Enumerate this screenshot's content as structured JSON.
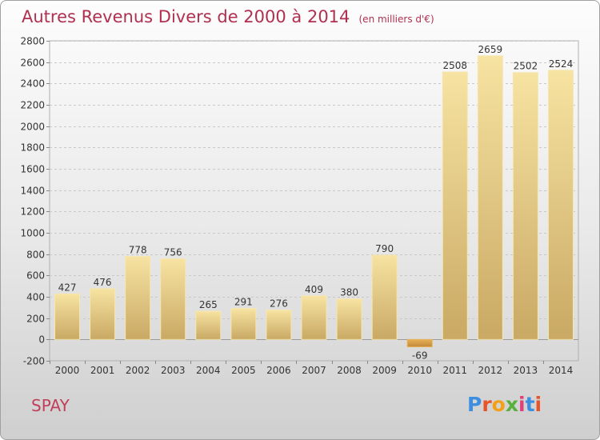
{
  "header": {
    "title": "Autres Revenus Divers de 2000 à 2014",
    "subtitle": "(en milliers d'€)"
  },
  "footer": {
    "place": "SPAY",
    "brand": "Proxiti",
    "brand_colors": [
      "#3c8ee0",
      "#e8542a",
      "#f2a018",
      "#5ab03c",
      "#e0407a",
      "#3c8ee0",
      "#e8542a"
    ]
  },
  "chart_data": {
    "type": "bar",
    "title": "Autres Revenus Divers de 2000 à 2014",
    "subtitle": "(en milliers d'€)",
    "categories": [
      "2000",
      "2001",
      "2002",
      "2003",
      "2004",
      "2005",
      "2006",
      "2007",
      "2008",
      "2009",
      "2010",
      "2011",
      "2012",
      "2013",
      "2014"
    ],
    "values": [
      427,
      476,
      778,
      756,
      265,
      291,
      276,
      409,
      380,
      790,
      -69,
      2508,
      2659,
      2502,
      2524
    ],
    "ylim": [
      -200,
      2800
    ],
    "yticks": [
      -200,
      0,
      200,
      400,
      600,
      800,
      1000,
      1200,
      1400,
      1600,
      1800,
      2000,
      2200,
      2400,
      2600,
      2800
    ],
    "grid": true,
    "bar_color": "#e0c27a",
    "negative_bar_color": "#d9a04a",
    "grid_color": "#c8c8c8"
  }
}
